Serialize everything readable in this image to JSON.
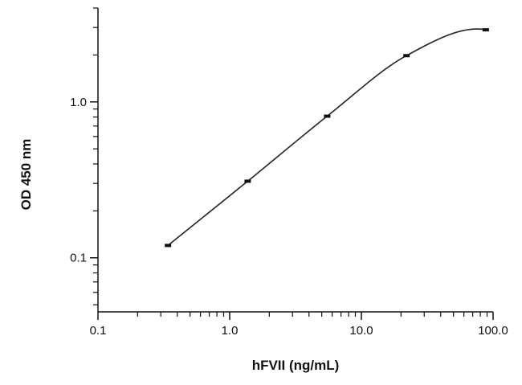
{
  "chart_data": {
    "type": "line",
    "title": "",
    "xlabel": "hFVII (ng/mL)",
    "ylabel": "OD 450 nm",
    "x_scale": "log",
    "y_scale": "log",
    "xlim": [
      0.1,
      100
    ],
    "ylim": [
      0.045,
      4.0
    ],
    "x_ticks": [
      {
        "value": 0.1,
        "label": "0.1"
      },
      {
        "value": 1,
        "label": "1.0"
      },
      {
        "value": 10,
        "label": "10.0"
      },
      {
        "value": 100,
        "label": "100.0"
      }
    ],
    "y_ticks": [
      {
        "value": 0.1,
        "label": "0.1"
      },
      {
        "value": 1,
        "label": "1.0"
      }
    ],
    "grid": false,
    "legend": "none",
    "series": [
      {
        "points": [
          {
            "x": 0.34,
            "y": 0.12
          },
          {
            "x": 1.37,
            "y": 0.31
          },
          {
            "x": 5.5,
            "y": 0.81
          },
          {
            "x": 22,
            "y": 1.98
          },
          {
            "x": 88,
            "y": 2.9
          }
        ],
        "color": "#222222"
      }
    ]
  }
}
